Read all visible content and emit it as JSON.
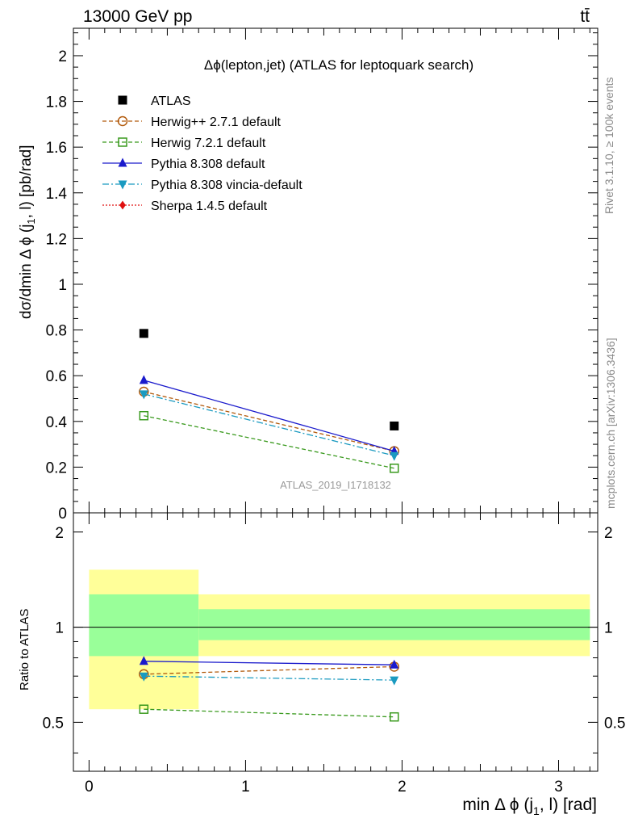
{
  "header": {
    "energy_label": "13000 GeV pp",
    "process_label": "tt̄"
  },
  "side": {
    "rivet_label": "Rivet 3.1.10, ≥ 100k events",
    "mcplots_label": "mcplots.cern.ch [arXiv:1306.3436]"
  },
  "watermark": "ATLAS_2019_I1718132",
  "chart_data": [
    {
      "type": "scatter",
      "title": "Δϕ(lepton,jet) (ATLAS for leptoquark search)",
      "ylabel": "dσ/dmin Δ ϕ (j1, l) [pb/rad]",
      "xlabel": "",
      "xlim": [
        -0.1,
        3.25
      ],
      "ylim": [
        0,
        2.12
      ],
      "yticks": [
        "0",
        "0.2",
        "0.4",
        "0.6",
        "0.8",
        "1",
        "1.2",
        "1.4",
        "1.6",
        "1.8",
        "2"
      ],
      "ytick_values": [
        0,
        0.2,
        0.4,
        0.6,
        0.8,
        1.0,
        1.2,
        1.4,
        1.6,
        1.8,
        2.0
      ],
      "legend_position": "top-left",
      "x": [
        0.35,
        1.95
      ],
      "series": [
        {
          "name": "ATLAS",
          "values": [
            0.785,
            0.38
          ],
          "color": "#000000",
          "marker": "square-filled",
          "line": "none"
        },
        {
          "name": "Herwig++ 2.7.1 default",
          "values": [
            0.53,
            0.27
          ],
          "color": "#b25a0c",
          "marker": "circle-open",
          "line": "dashed"
        },
        {
          "name": "Herwig 7.2.1 default",
          "values": [
            0.425,
            0.195
          ],
          "color": "#3a9a1e",
          "marker": "square-open",
          "line": "dashed"
        },
        {
          "name": "Pythia 8.308 default",
          "values": [
            0.58,
            0.27
          ],
          "color": "#1a1acc",
          "marker": "triangle-up",
          "line": "solid"
        },
        {
          "name": "Pythia 8.308 vincia-default",
          "values": [
            0.52,
            0.25
          ],
          "color": "#1a9ac0",
          "marker": "triangle-down",
          "line": "dashdot"
        },
        {
          "name": "Sherpa 1.4.5 default",
          "values": [],
          "color": "#e01010",
          "marker": "diamond",
          "line": "dotted"
        }
      ]
    },
    {
      "type": "scatter",
      "title": "",
      "ylabel": "Ratio to ATLAS",
      "xlabel": "min Δ ϕ (j1, l) [rad]",
      "xlim": [
        -0.1,
        3.25
      ],
      "ylim": [
        0.35,
        2.3
      ],
      "log_y": true,
      "yticks": [
        "0.5",
        "1",
        "2"
      ],
      "ytick_values": [
        0.5,
        1,
        2
      ],
      "xticks": [
        "0",
        "1",
        "2",
        "3"
      ],
      "xtick_values": [
        0,
        1,
        2,
        3
      ],
      "bands": [
        {
          "x0": 0.0,
          "x1": 0.7,
          "yellow": [
            0.55,
            1.52
          ],
          "green": [
            0.81,
            1.27
          ]
        },
        {
          "x0": 0.7,
          "x1": 3.2,
          "yellow": [
            0.81,
            1.27
          ],
          "green": [
            0.91,
            1.14
          ]
        }
      ],
      "x": [
        0.35,
        1.95
      ],
      "series": [
        {
          "name": "Herwig++ 2.7.1 default",
          "values": [
            0.71,
            0.75
          ],
          "color": "#b25a0c",
          "marker": "circle-open",
          "line": "dashed"
        },
        {
          "name": "Herwig 7.2.1 default",
          "values": [
            0.55,
            0.52
          ],
          "color": "#3a9a1e",
          "marker": "square-open",
          "line": "dashed"
        },
        {
          "name": "Pythia 8.308 default",
          "values": [
            0.78,
            0.76
          ],
          "color": "#1a1acc",
          "marker": "triangle-up",
          "line": "solid"
        },
        {
          "name": "Pythia 8.308 vincia-default",
          "values": [
            0.7,
            0.68
          ],
          "color": "#1a9ac0",
          "marker": "triangle-down",
          "line": "dashdot"
        }
      ]
    }
  ]
}
